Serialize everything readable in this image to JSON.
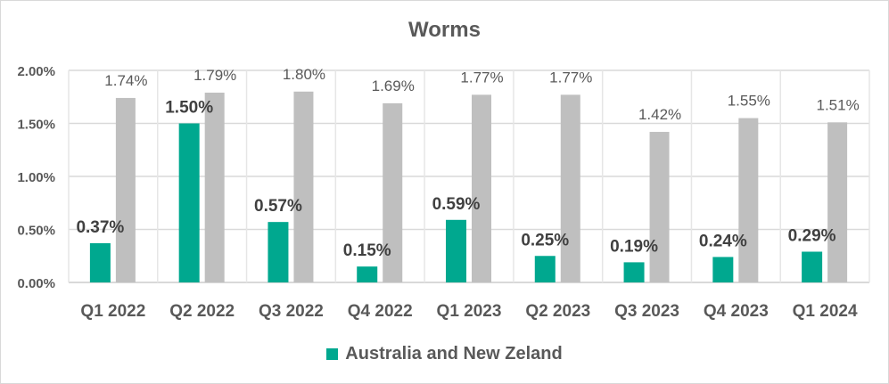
{
  "chart_data": {
    "type": "bar",
    "title": "Worms",
    "xlabel": "",
    "ylabel": "",
    "ylim": [
      0,
      2.0
    ],
    "yticks": [
      "0.00%",
      "0.50%",
      "1.00%",
      "1.50%",
      "2.00%"
    ],
    "ytick_values": [
      0,
      0.5,
      1.0,
      1.5,
      2.0
    ],
    "grid": true,
    "legend_position": "bottom",
    "categories": [
      "Q1 2022",
      "Q2 2022",
      "Q3 2022",
      "Q4 2022",
      "Q1 2023",
      "Q2 2023",
      "Q3 2023",
      "Q4 2023",
      "Q1 2024"
    ],
    "series": [
      {
        "name": "Australia and New Zeland",
        "color": "#00a88f",
        "in_legend": true,
        "values": [
          0.37,
          1.5,
          0.57,
          0.15,
          0.59,
          0.25,
          0.19,
          0.24,
          0.29
        ],
        "labels": [
          "0.37%",
          "1.50%",
          "0.57%",
          "0.15%",
          "0.59%",
          "0.25%",
          "0.19%",
          "0.24%",
          "0.29%"
        ]
      },
      {
        "name": "",
        "color": "#bfbfbf",
        "in_legend": false,
        "values": [
          1.74,
          1.79,
          1.8,
          1.69,
          1.77,
          1.77,
          1.42,
          1.55,
          1.51
        ],
        "labels": [
          "1.74%",
          "1.79%",
          "1.80%",
          "1.69%",
          "1.77%",
          "1.77%",
          "1.42%",
          "1.55%",
          "1.51%"
        ]
      }
    ]
  }
}
